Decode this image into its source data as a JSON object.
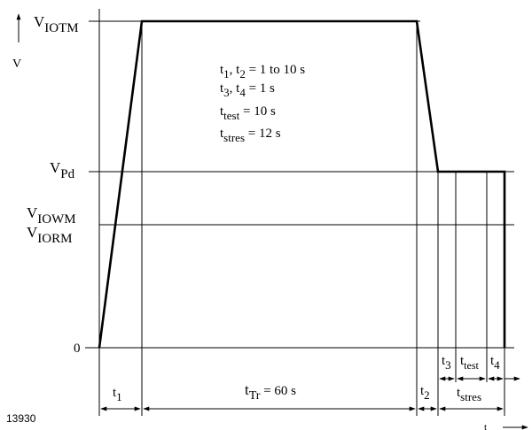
{
  "figure_id": "13930",
  "y_axis": {
    "arrow_label": "V",
    "time_arrow_label": "t"
  },
  "levels": {
    "iotm": {
      "main": "V",
      "sub": "IOTM"
    },
    "pd": {
      "main": "V",
      "sub": "Pd"
    },
    "iowm": {
      "main": "V",
      "sub": "IOWM"
    },
    "iorm": {
      "main": "V",
      "sub": "IORM"
    },
    "zero": "0"
  },
  "notes": {
    "line1": {
      "t": "t",
      "s1": "1",
      "mid": ", t",
      "s2": "2",
      "rest": " = 1 to 10 s"
    },
    "line2": {
      "t": "t",
      "s1": "3",
      "mid": ", t",
      "s2": "4",
      "rest": " = 1 s"
    },
    "line3": {
      "t": "t",
      "sub": "test",
      "rest": " = 10 s"
    },
    "line4": {
      "t": "t",
      "sub": "stres",
      "rest": " = 12 s"
    }
  },
  "intervals": {
    "t1": {
      "main": "t",
      "sub": "1"
    },
    "ttr": {
      "main": "t",
      "sub": "Tr",
      "rest": "   = 60 s"
    },
    "t2": {
      "main": "t",
      "sub": "2"
    },
    "tstres": {
      "main": "t",
      "sub": "stres"
    },
    "t3": {
      "main": "t",
      "sub": "3"
    },
    "ttest": {
      "main": "t",
      "sub": "test"
    },
    "t4": {
      "main": "t",
      "sub": "4"
    }
  }
}
